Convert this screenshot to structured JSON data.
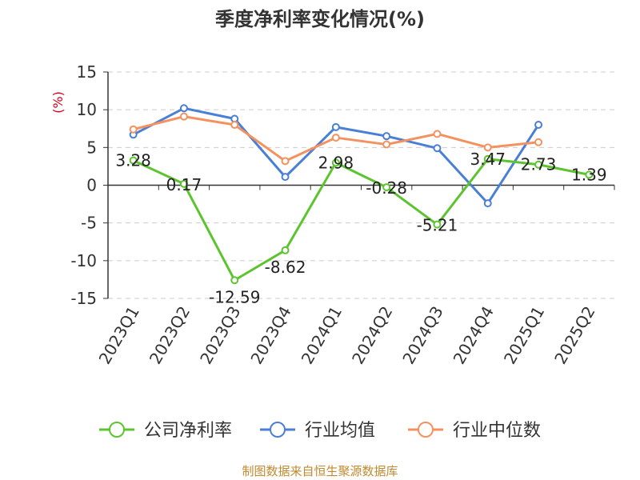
{
  "chart_data": {
    "type": "line",
    "title": "季度净利率变化情况(%)",
    "y_unit": "(%)",
    "categories": [
      "2023Q1",
      "2023Q2",
      "2023Q3",
      "2023Q4",
      "2024Q1",
      "2024Q2",
      "2024Q3",
      "2024Q4",
      "2025Q1",
      "2025Q2"
    ],
    "ylim": [
      -15,
      15
    ],
    "yticks": [
      15,
      10,
      5,
      0,
      -5,
      -10,
      -15
    ],
    "grid": true,
    "legend_position": "bottom",
    "series": [
      {
        "name": "公司净利率",
        "color": "#5cc42f",
        "values": [
          3.28,
          0.17,
          -12.59,
          -8.62,
          2.98,
          -0.28,
          -5.21,
          3.47,
          2.73,
          1.39
        ],
        "labels": [
          "3.28",
          "0.17",
          "-12.59",
          "-8.62",
          "2.98",
          "-0.28",
          "-5.21",
          "3.47",
          "2.73",
          "1.39"
        ]
      },
      {
        "name": "行业均值",
        "color": "#4a7fd6",
        "values": [
          6.7,
          10.2,
          8.8,
          1.1,
          7.7,
          6.5,
          4.9,
          -2.4,
          8.0,
          null
        ]
      },
      {
        "name": "行业中位数",
        "color": "#f4925f",
        "values": [
          7.4,
          9.1,
          8.0,
          3.2,
          6.3,
          5.4,
          6.8,
          5.0,
          5.7,
          null
        ]
      }
    ]
  },
  "source": "制图数据来自恒生聚源数据库"
}
